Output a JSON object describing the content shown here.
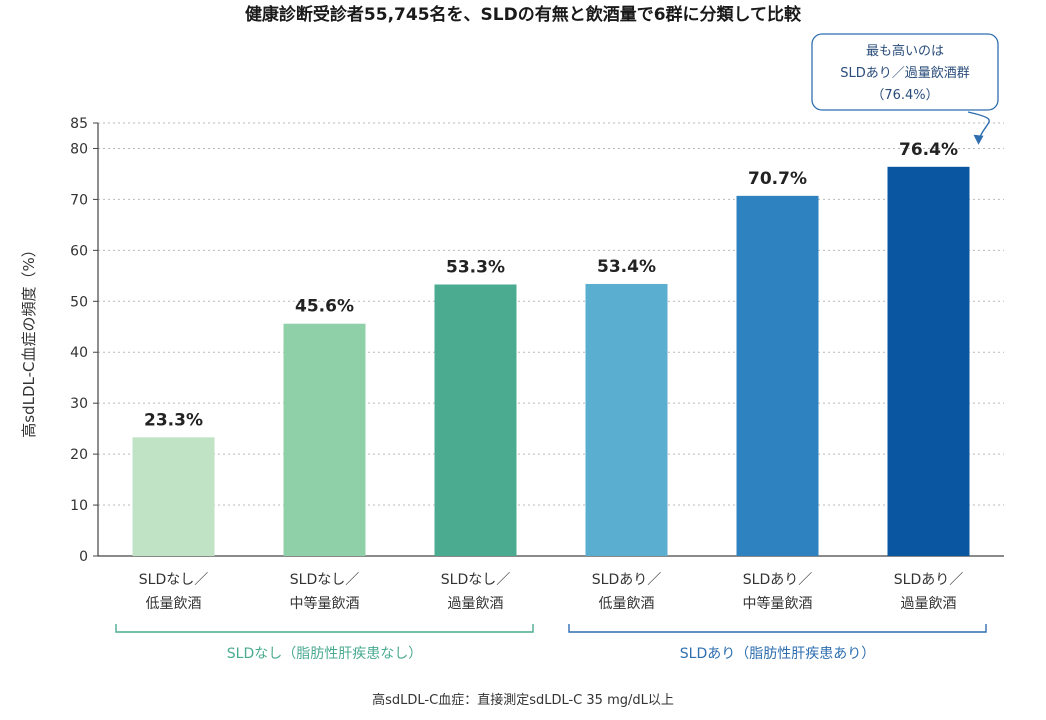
{
  "chart_data": {
    "type": "bar",
    "title": "健康診断受診者55,745名を、SLDの有無と飲酒量で6群に分類して比較",
    "ylabel": "高sdLDL-C血症の頻度（%）",
    "ylim": [
      0,
      85
    ],
    "yticks": [
      0,
      10,
      20,
      30,
      40,
      50,
      60,
      70,
      80,
      85
    ],
    "grid": true,
    "categories": [
      [
        "SLDなし／",
        "低量飲酒"
      ],
      [
        "SLDなし／",
        "中等量飲酒"
      ],
      [
        "SLDなし／",
        "過量飲酒"
      ],
      [
        "SLDあり／",
        "低量飲酒"
      ],
      [
        "SLDあり／",
        "中等量飲酒"
      ],
      [
        "SLDあり／",
        "過量飲酒"
      ]
    ],
    "values": [
      23.3,
      45.6,
      53.3,
      53.4,
      70.7,
      76.4
    ],
    "value_labels": [
      "23.3%",
      "45.6%",
      "53.3%",
      "53.4%",
      "70.7%",
      "76.4%"
    ],
    "colors": [
      "#bfe3c4",
      "#8fd0a9",
      "#4aab90",
      "#5aaed0",
      "#2f82c0",
      "#0b56a0"
    ],
    "groups": [
      {
        "label": "SLDなし（脂肪性肝疾患なし）",
        "from": 0,
        "to": 2,
        "color": "#4aab90"
      },
      {
        "label": "SLDあり（脂肪性肝疾患あり）",
        "from": 3,
        "to": 5,
        "color": "#2f6fb0"
      }
    ],
    "callout": {
      "lines": [
        "最も高いのは",
        "SLDあり／過量飲酒群",
        "（76.4%）"
      ],
      "target_index": 5,
      "color": "#2f6fb0"
    },
    "note": "高sdLDL-C血症：直接測定sdLDL-C 35 mg/dL以上"
  }
}
